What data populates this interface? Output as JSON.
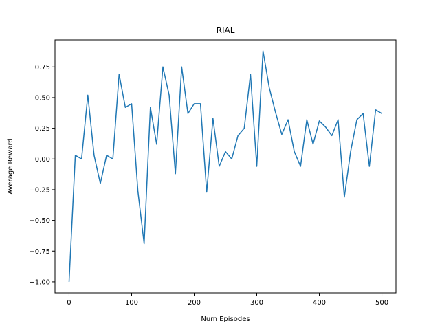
{
  "chart_data": {
    "type": "line",
    "title": "RIAL",
    "xlabel": "Num Episodes",
    "ylabel": "Average Reward",
    "xlim": [
      -22.5,
      522.5
    ],
    "ylim": [
      -1.09,
      0.97
    ],
    "xticks": [
      0,
      100,
      200,
      300,
      400,
      500
    ],
    "yticks": [
      -1.0,
      -0.75,
      -0.5,
      -0.25,
      0.0,
      0.25,
      0.5,
      0.75
    ],
    "ytick_labels": [
      "−1.00",
      "−0.75",
      "−0.50",
      "−0.25",
      "0.00",
      "0.25",
      "0.50",
      "0.75"
    ],
    "grid": false,
    "series": [
      {
        "color": "#1f77b4",
        "x": [
          0,
          10,
          20,
          30,
          40,
          50,
          60,
          70,
          80,
          90,
          100,
          110,
          120,
          130,
          140,
          150,
          160,
          170,
          180,
          190,
          200,
          210,
          220,
          230,
          240,
          250,
          260,
          270,
          280,
          290,
          300,
          310,
          320,
          330,
          340,
          350,
          360,
          370,
          380,
          390,
          400,
          410,
          420,
          430,
          440,
          450,
          460,
          470,
          480,
          490,
          500
        ],
        "y": [
          -1.0,
          0.03,
          0.0,
          0.52,
          0.03,
          -0.2,
          0.03,
          0.0,
          0.69,
          0.42,
          0.45,
          -0.26,
          -0.69,
          0.42,
          0.12,
          0.75,
          0.52,
          -0.12,
          0.75,
          0.37,
          0.45,
          0.45,
          -0.27,
          0.33,
          -0.06,
          0.06,
          0.0,
          0.19,
          0.25,
          0.69,
          -0.06,
          0.88,
          0.58,
          0.38,
          0.2,
          0.32,
          0.06,
          -0.06,
          0.32,
          0.12,
          0.31,
          0.26,
          0.19,
          0.32,
          -0.31,
          0.06,
          0.32,
          0.37,
          -0.06,
          0.4,
          0.37
        ]
      }
    ]
  }
}
